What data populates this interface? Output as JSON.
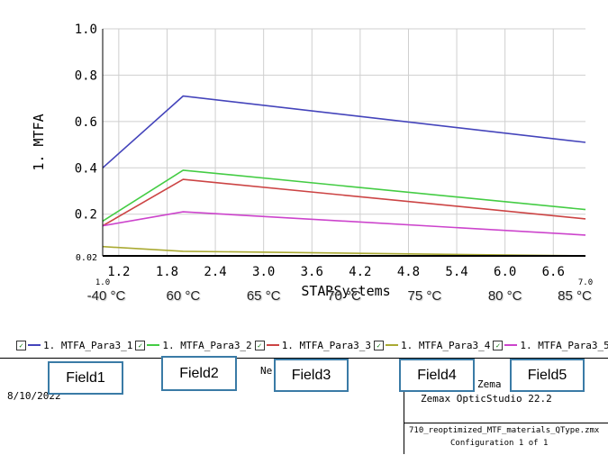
{
  "chart_data": {
    "type": "line",
    "title": "",
    "xlabel": "STARSystems",
    "ylabel": "1. MTFA",
    "xlim": [
      1.0,
      7.0
    ],
    "ylim": [
      0.02,
      1.0
    ],
    "x_ticks": [
      "1.2",
      "1.8",
      "2.4",
      "3.0",
      "3.6",
      "4.2",
      "4.8",
      "5.4",
      "6.0",
      "6.6"
    ],
    "x_end_labels": [
      "1.0",
      "7.0"
    ],
    "y_ticks": [
      "0.02",
      "0.2",
      "0.4",
      "0.6",
      "0.8",
      "1.0"
    ],
    "temperature_labels": [
      "-40 °C",
      "60 °C",
      "65 °C",
      "70 °C",
      "75 °C",
      "80 °C",
      "85 °C"
    ],
    "x": [
      1.0,
      2.0,
      7.0
    ],
    "series": [
      {
        "name": "1. MTFA_Para3_1",
        "color": "#4444bb",
        "values": [
          0.4,
          0.71,
          0.51
        ]
      },
      {
        "name": "1. MTFA_Para3_2",
        "color": "#44cc44",
        "values": [
          0.17,
          0.39,
          0.22
        ]
      },
      {
        "name": "1. MTFA_Para3_3",
        "color": "#cc4444",
        "values": [
          0.15,
          0.35,
          0.18
        ]
      },
      {
        "name": "1. MTFA_Para3_4",
        "color": "#aaaa33",
        "values": [
          0.06,
          0.04,
          0.02
        ]
      },
      {
        "name": "1. MTFA_Para3_5",
        "color": "#cc44cc",
        "values": [
          0.15,
          0.21,
          0.11
        ]
      }
    ],
    "legend_position": "bottom",
    "grid": true
  },
  "footer": {
    "fields": [
      "Field1",
      "Field2",
      "Field3",
      "Field4",
      "Field5"
    ],
    "new_label": "Ne",
    "date": "8/10/2022",
    "company": "Zema",
    "product": "Zemax OpticStudio 22.2",
    "file_name": "710_reoptimized_MTF_materials_QType.zmx",
    "configuration": "Configuration 1 of 1"
  }
}
